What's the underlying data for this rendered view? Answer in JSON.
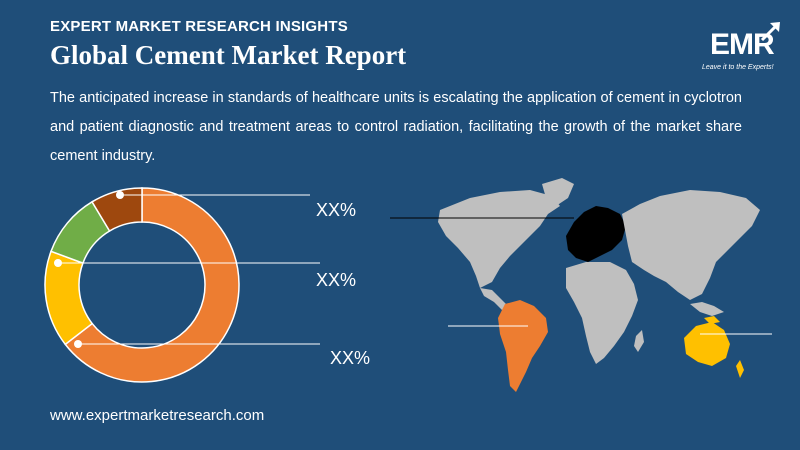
{
  "header": {
    "eyebrow": "EXPERT MARKET RESEARCH INSIGHTS",
    "title": "Global Cement Market Report",
    "description": "The anticipated increase in standards of healthcare units is escalating the application of cement in cyclotron and patient diagnostic and treatment areas to control radiation, facilitating the growth of the market share cement industry."
  },
  "logo": {
    "text": "EMR",
    "tagline": "Leave it to the Experts!"
  },
  "footer": {
    "url": "www.expertmarketresearch.com"
  },
  "chart_data": {
    "type": "pie",
    "style": "donut",
    "categories": [
      "",
      "",
      "",
      ""
    ],
    "values": [
      60,
      15,
      10,
      8
    ],
    "colors": [
      "#ed7d31",
      "#ffc000",
      "#70ad47",
      "#9e480e"
    ],
    "labels": [
      "XX%",
      "XX%",
      "XX%"
    ]
  },
  "map": {
    "highlight_colors": {
      "europe": "#000000",
      "south_america": "#ed7d31",
      "oceania": "#ffc000",
      "other": "#bfbfbf"
    }
  }
}
